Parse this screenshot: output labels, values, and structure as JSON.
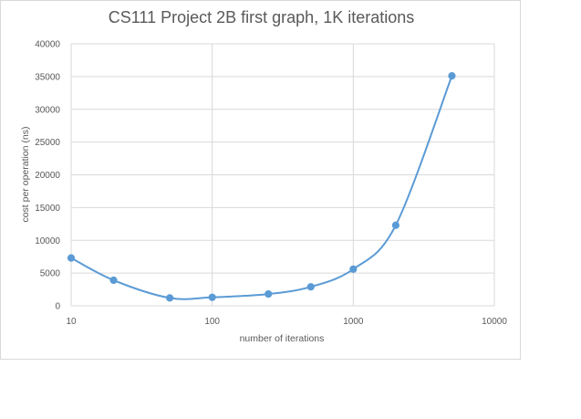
{
  "chart_data": {
    "type": "scatter",
    "title": "CS111 Project 2B first graph, 1K iterations",
    "xlabel": "number of iterations",
    "ylabel": "cost per operation (ns)",
    "xscale": "log",
    "xlim": [
      10,
      10000
    ],
    "ylim": [
      0,
      40000
    ],
    "xticks": [
      10,
      100,
      1000,
      10000
    ],
    "yticks": [
      0,
      5000,
      10000,
      15000,
      20000,
      25000,
      30000,
      35000,
      40000
    ],
    "grid": true,
    "legend": "none",
    "line_style": "smoothed line with markers",
    "series": [
      {
        "color": "#5b9bd5",
        "x": [
          10,
          20,
          50,
          100,
          250,
          500,
          1000,
          2000,
          5000
        ],
        "y": [
          7300,
          3900,
          1200,
          1300,
          1800,
          2900,
          5600,
          12300,
          35100
        ]
      }
    ]
  }
}
